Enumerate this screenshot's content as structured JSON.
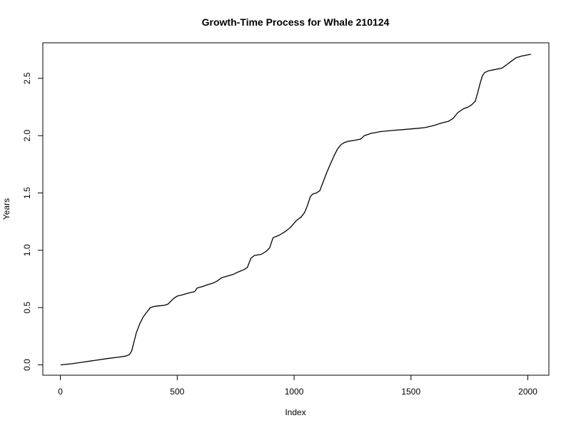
{
  "chart_data": {
    "type": "line",
    "title": "Growth-Time Process for Whale 210124",
    "xlabel": "Index",
    "ylabel": "Years",
    "xlim": [
      -75,
      2090
    ],
    "ylim": [
      -0.09,
      2.81
    ],
    "xticks": [
      0,
      500,
      1000,
      1500,
      2000
    ],
    "xtick_labels": [
      "0",
      "500",
      "1000",
      "1500",
      "2000"
    ],
    "yticks": [
      0.0,
      0.5,
      1.0,
      1.5,
      2.0,
      2.5
    ],
    "ytick_labels": [
      "0.0",
      "0.5",
      "1.0",
      "1.5",
      "2.0",
      "2.5"
    ],
    "grid": false,
    "line_color": "#000000",
    "series": [
      {
        "x": [
          1,
          50,
          100,
          150,
          200,
          250,
          280,
          295,
          305,
          315,
          325,
          340,
          355,
          370,
          385,
          400,
          420,
          445,
          460,
          470,
          485,
          500,
          520,
          545,
          575,
          585,
          610,
          630,
          655,
          670,
          690,
          715,
          740,
          760,
          785,
          800,
          815,
          830,
          860,
          880,
          895,
          910,
          935,
          960,
          985,
          1010,
          1030,
          1045,
          1055,
          1070,
          1080,
          1095,
          1110,
          1125,
          1140,
          1155,
          1170,
          1185,
          1200,
          1215,
          1230,
          1260,
          1285,
          1300,
          1330,
          1370,
          1420,
          1480,
          1520,
          1560,
          1600,
          1630,
          1660,
          1680,
          1700,
          1725,
          1745,
          1760,
          1775,
          1785,
          1795,
          1805,
          1815,
          1830,
          1855,
          1890,
          1910,
          1930,
          1950,
          1975,
          2000,
          2013
        ],
        "y": [
          0.0,
          0.01,
          0.025,
          0.04,
          0.055,
          0.068,
          0.077,
          0.09,
          0.12,
          0.2,
          0.28,
          0.36,
          0.42,
          0.46,
          0.5,
          0.51,
          0.515,
          0.52,
          0.53,
          0.55,
          0.58,
          0.6,
          0.61,
          0.625,
          0.64,
          0.67,
          0.685,
          0.7,
          0.715,
          0.73,
          0.76,
          0.775,
          0.79,
          0.81,
          0.83,
          0.85,
          0.93,
          0.955,
          0.965,
          0.99,
          1.02,
          1.11,
          1.13,
          1.16,
          1.2,
          1.26,
          1.29,
          1.33,
          1.38,
          1.47,
          1.49,
          1.5,
          1.52,
          1.6,
          1.68,
          1.75,
          1.82,
          1.88,
          1.92,
          1.94,
          1.95,
          1.96,
          1.97,
          2.0,
          2.02,
          2.035,
          2.045,
          2.055,
          2.062,
          2.07,
          2.09,
          2.11,
          2.125,
          2.15,
          2.2,
          2.235,
          2.25,
          2.27,
          2.3,
          2.37,
          2.45,
          2.52,
          2.55,
          2.565,
          2.575,
          2.59,
          2.62,
          2.65,
          2.68,
          2.695,
          2.705,
          2.71
        ]
      }
    ]
  }
}
